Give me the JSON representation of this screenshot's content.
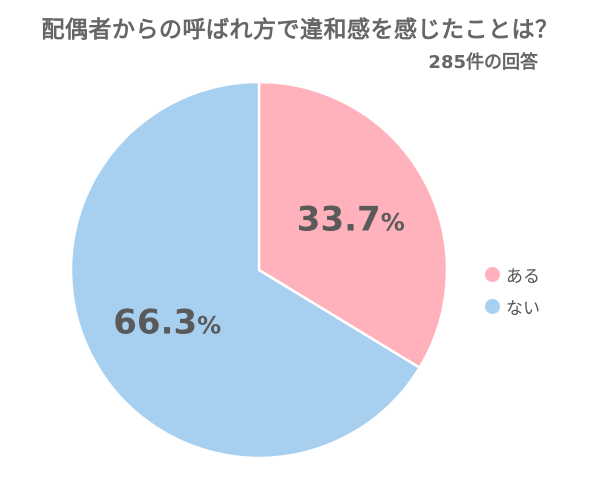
{
  "title": "配偶者からの呼ばれ方で違和感を感じたことは？",
  "subtitle": "285件の回答",
  "chart_data": {
    "type": "pie",
    "title": "配偶者からの呼ばれ方で違和感を感じたことは？",
    "subtitle": "285件の回答",
    "slices": [
      {
        "label": "ある",
        "value": 33.7,
        "display": "33.7%",
        "color": "#ffb2bb"
      },
      {
        "label": "ない",
        "value": 66.3,
        "display": "66.3%",
        "color": "#a7cff0"
      }
    ],
    "legend_placement": "right"
  },
  "legend": {
    "items": [
      {
        "label": "ある",
        "color": "#ffb2bb"
      },
      {
        "label": "ない",
        "color": "#a7cff0"
      }
    ]
  }
}
